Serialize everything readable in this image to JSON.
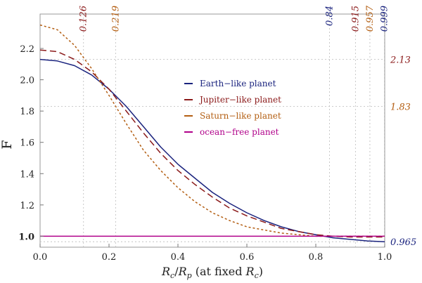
{
  "chart_data": {
    "type": "line",
    "title": "",
    "xlabel_main": "R",
    "xlabel_sub_c": "c",
    "xlabel_slash": "/",
    "xlabel_sub_p": "p",
    "xlabel_rest": " (at fixed ",
    "xlabel_close": ")",
    "ylabel": "F",
    "xlim": [
      0,
      1
    ],
    "ylim": [
      0.93,
      2.42
    ],
    "x_ticks": [
      "0.0",
      "0.2",
      "0.4",
      "0.6",
      "0.8",
      "1.0"
    ],
    "y_ticks": [
      "1.0",
      "1.2",
      "1.4",
      "1.6",
      "1.8",
      "2.0",
      "2.2"
    ],
    "y_tick_values": [
      1.0,
      1.2,
      1.4,
      1.6,
      1.8,
      2.0,
      2.2
    ],
    "top_annotations": [
      {
        "value": 0.126,
        "label": "0.126",
        "color": "#8b1a1a"
      },
      {
        "value": 0.219,
        "label": "0.219",
        "color": "#b35e12"
      },
      {
        "value": 0.84,
        "label": "0.84",
        "color": "#1a237e"
      },
      {
        "value": 0.915,
        "label": "0.915",
        "color": "#8b1a1a"
      },
      {
        "value": 0.957,
        "label": "0.957",
        "color": "#b35e12"
      },
      {
        "value": 0.999,
        "label": "0.999",
        "color": "#1a237e"
      }
    ],
    "right_annotations": [
      {
        "value": 2.13,
        "label": "2.13",
        "color": "#8b1a1a"
      },
      {
        "value": 1.83,
        "label": "1.83",
        "color": "#b35e12"
      },
      {
        "value": 0.965,
        "label": "0.965",
        "color": "#1a237e"
      }
    ],
    "series": [
      {
        "name": "Earth−like planet",
        "color": "#1a237e",
        "dash": "",
        "x": [
          0,
          0.05,
          0.1,
          0.15,
          0.2,
          0.25,
          0.3,
          0.35,
          0.4,
          0.45,
          0.5,
          0.55,
          0.6,
          0.65,
          0.7,
          0.75,
          0.8,
          0.85,
          0.9,
          0.95,
          1.0
        ],
        "y": [
          2.13,
          2.12,
          2.09,
          2.03,
          1.94,
          1.83,
          1.7,
          1.57,
          1.46,
          1.37,
          1.28,
          1.21,
          1.15,
          1.1,
          1.06,
          1.03,
          1.01,
          0.99,
          0.98,
          0.97,
          0.965
        ]
      },
      {
        "name": "Jupiter−like planet",
        "color": "#8b1a1a",
        "dash": "9,5",
        "x": [
          0,
          0.05,
          0.1,
          0.15,
          0.2,
          0.25,
          0.3,
          0.35,
          0.4,
          0.45,
          0.5,
          0.55,
          0.6,
          0.65,
          0.7,
          0.75,
          0.8,
          0.85,
          0.9,
          0.95,
          1.0
        ],
        "y": [
          2.19,
          2.18,
          2.13,
          2.05,
          1.94,
          1.8,
          1.66,
          1.53,
          1.42,
          1.33,
          1.25,
          1.18,
          1.13,
          1.09,
          1.05,
          1.03,
          1.01,
          1.0,
          0.995,
          0.995,
          0.995
        ]
      },
      {
        "name": "Saturn−like planet",
        "color": "#b35e12",
        "dash": "3,3",
        "x": [
          0,
          0.05,
          0.1,
          0.15,
          0.2,
          0.25,
          0.3,
          0.35,
          0.4,
          0.45,
          0.5,
          0.55,
          0.6,
          0.65,
          0.7,
          0.75,
          0.8,
          0.85,
          0.9,
          0.95,
          1.0
        ],
        "y": [
          2.35,
          2.32,
          2.22,
          2.07,
          1.9,
          1.72,
          1.55,
          1.42,
          1.31,
          1.22,
          1.15,
          1.1,
          1.06,
          1.04,
          1.02,
          1.01,
          1.0,
          1.0,
          1.0,
          1.0,
          1.0
        ]
      },
      {
        "name": "ocean−free planet",
        "color": "#b0008a",
        "dash": "",
        "x": [
          0,
          1.0
        ],
        "y": [
          1.0,
          1.0
        ]
      }
    ],
    "legend_position": "upper-center",
    "grid": false
  }
}
